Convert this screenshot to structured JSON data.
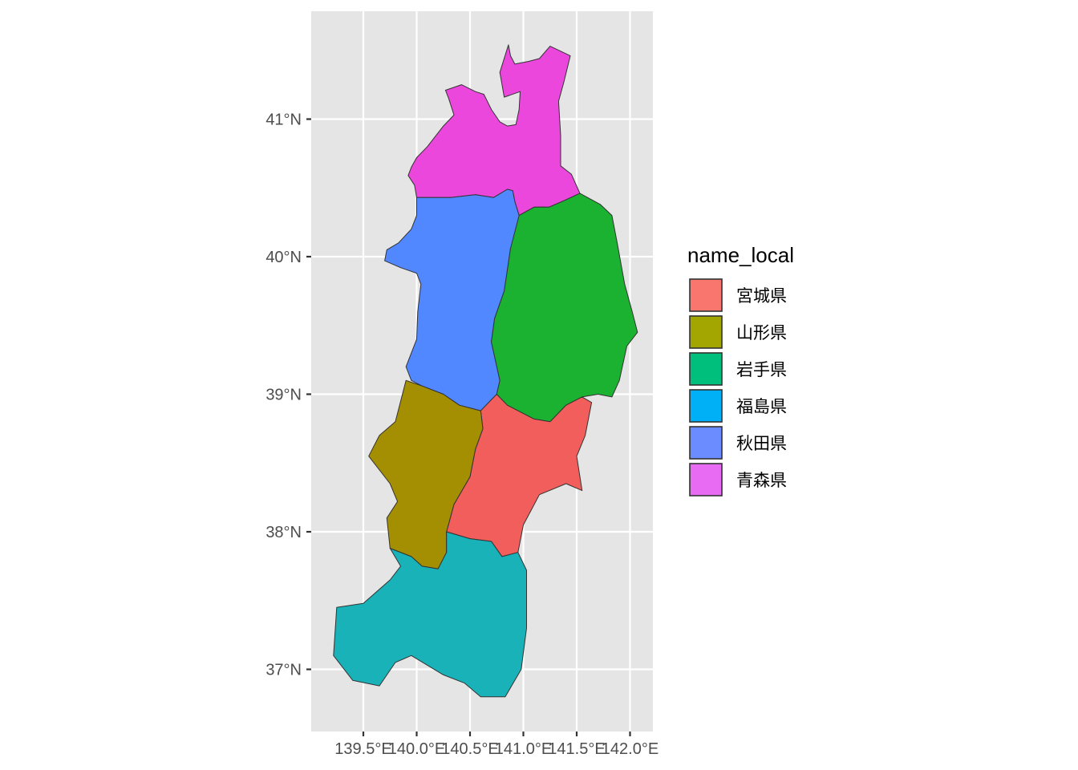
{
  "chart_data": {
    "type": "map",
    "x_axis": {
      "ticks": [
        {
          "value": 139.5,
          "label": "139.5°E"
        },
        {
          "value": 140.0,
          "label": "140.0°E"
        },
        {
          "value": 140.5,
          "label": "140.5°E"
        },
        {
          "value": 141.0,
          "label": "141.0°E"
        },
        {
          "value": 141.5,
          "label": "141.5°E"
        },
        {
          "value": 142.0,
          "label": "142.0°E"
        }
      ]
    },
    "y_axis": {
      "ticks": [
        {
          "value": 41,
          "label": "41°N"
        },
        {
          "value": 40,
          "label": "40°N"
        },
        {
          "value": 39,
          "label": "39°N"
        },
        {
          "value": 38,
          "label": "38°N"
        },
        {
          "value": 37,
          "label": "37°N"
        }
      ]
    },
    "panel_background": "#e5e5e5",
    "grid": true,
    "legend": {
      "title": "name_local",
      "position": "right",
      "entries": [
        {
          "label": "宮城県",
          "color": "#F8766D"
        },
        {
          "label": "山形県",
          "color": "#A3A500"
        },
        {
          "label": "岩手県",
          "color": "#00BF7D"
        },
        {
          "label": "福島県",
          "color": "#00B0F6"
        },
        {
          "label": "秋田県",
          "color": "#6A8CFF"
        },
        {
          "label": "青森県",
          "color": "#E76BF3"
        }
      ]
    },
    "regions": [
      {
        "name": "青森県",
        "color": "#EC47DD",
        "outline": [
          [
            140.86,
            41.54
          ],
          [
            140.88,
            41.46
          ],
          [
            140.92,
            41.4
          ],
          [
            141.05,
            41.42
          ],
          [
            141.15,
            41.44
          ],
          [
            141.25,
            41.53
          ],
          [
            141.44,
            41.46
          ],
          [
            141.38,
            41.27
          ],
          [
            141.33,
            41.13
          ],
          [
            141.35,
            40.88
          ],
          [
            141.35,
            40.66
          ],
          [
            141.45,
            40.6
          ],
          [
            141.53,
            40.46
          ],
          [
            141.36,
            40.4
          ],
          [
            141.24,
            40.36
          ],
          [
            141.1,
            40.36
          ],
          [
            140.96,
            40.3
          ],
          [
            140.92,
            40.4
          ],
          [
            140.9,
            40.48
          ],
          [
            140.85,
            40.49
          ],
          [
            140.72,
            40.43
          ],
          [
            140.55,
            40.45
          ],
          [
            140.32,
            40.43
          ],
          [
            140.15,
            40.43
          ],
          [
            140.0,
            40.43
          ],
          [
            139.98,
            40.52
          ],
          [
            139.92,
            40.59
          ],
          [
            139.95,
            40.65
          ],
          [
            140.0,
            40.72
          ],
          [
            140.1,
            40.8
          ],
          [
            140.25,
            40.95
          ],
          [
            140.35,
            41.03
          ],
          [
            140.3,
            41.15
          ],
          [
            140.27,
            41.21
          ],
          [
            140.42,
            41.25
          ],
          [
            140.55,
            41.2
          ],
          [
            140.63,
            41.18
          ],
          [
            140.7,
            41.07
          ],
          [
            140.78,
            40.98
          ],
          [
            140.85,
            40.95
          ],
          [
            140.93,
            40.96
          ],
          [
            140.96,
            41.07
          ],
          [
            140.97,
            41.2
          ],
          [
            140.82,
            41.16
          ],
          [
            140.78,
            41.34
          ]
        ]
      },
      {
        "name": "秋田県",
        "color": "#5187FF",
        "outline": [
          [
            140.0,
            40.43
          ],
          [
            140.15,
            40.43
          ],
          [
            140.32,
            40.43
          ],
          [
            140.55,
            40.45
          ],
          [
            140.72,
            40.43
          ],
          [
            140.85,
            40.49
          ],
          [
            140.9,
            40.48
          ],
          [
            140.92,
            40.4
          ],
          [
            140.96,
            40.3
          ],
          [
            140.96,
            40.12
          ],
          [
            140.88,
            40.06
          ],
          [
            140.85,
            39.9
          ],
          [
            140.82,
            39.75
          ],
          [
            140.73,
            39.55
          ],
          [
            140.7,
            39.38
          ],
          [
            140.78,
            39.1
          ],
          [
            140.75,
            39.0
          ],
          [
            140.6,
            38.88
          ],
          [
            140.4,
            38.92
          ],
          [
            140.25,
            39.0
          ],
          [
            140.05,
            39.06
          ],
          [
            139.95,
            39.1
          ],
          [
            139.9,
            39.2
          ],
          [
            140.0,
            39.4
          ],
          [
            140.01,
            39.6
          ],
          [
            140.04,
            39.8
          ],
          [
            140.0,
            39.88
          ],
          [
            139.85,
            39.92
          ],
          [
            139.7,
            39.97
          ],
          [
            139.72,
            40.05
          ],
          [
            139.83,
            40.1
          ],
          [
            139.95,
            40.2
          ],
          [
            140.0,
            40.3
          ]
        ]
      },
      {
        "name": "岩手県",
        "color": "#1AB230",
        "outline": [
          [
            140.96,
            40.3
          ],
          [
            141.1,
            40.36
          ],
          [
            141.24,
            40.36
          ],
          [
            141.36,
            40.4
          ],
          [
            141.53,
            40.46
          ],
          [
            141.72,
            40.38
          ],
          [
            141.83,
            40.3
          ],
          [
            141.88,
            40.1
          ],
          [
            141.95,
            39.8
          ],
          [
            142.02,
            39.6
          ],
          [
            142.07,
            39.45
          ],
          [
            141.97,
            39.35
          ],
          [
            141.9,
            39.1
          ],
          [
            141.83,
            38.98
          ],
          [
            141.7,
            39.0
          ],
          [
            141.55,
            38.98
          ],
          [
            141.4,
            38.92
          ],
          [
            141.25,
            38.8
          ],
          [
            141.1,
            38.82
          ],
          [
            140.85,
            38.92
          ],
          [
            140.75,
            39.0
          ],
          [
            140.78,
            39.1
          ],
          [
            140.7,
            39.38
          ],
          [
            140.73,
            39.55
          ],
          [
            140.82,
            39.75
          ],
          [
            140.85,
            39.9
          ],
          [
            140.88,
            40.06
          ]
        ]
      },
      {
        "name": "宮城県",
        "color": "#F25E5B",
        "outline": [
          [
            140.6,
            38.88
          ],
          [
            140.75,
            39.0
          ],
          [
            140.85,
            38.92
          ],
          [
            141.1,
            38.82
          ],
          [
            141.25,
            38.8
          ],
          [
            141.4,
            38.92
          ],
          [
            141.55,
            38.98
          ],
          [
            141.64,
            38.94
          ],
          [
            141.58,
            38.7
          ],
          [
            141.5,
            38.55
          ],
          [
            141.55,
            38.3
          ],
          [
            141.4,
            38.35
          ],
          [
            141.15,
            38.27
          ],
          [
            141.0,
            38.05
          ],
          [
            140.95,
            37.85
          ],
          [
            140.8,
            37.82
          ],
          [
            140.7,
            37.93
          ],
          [
            140.5,
            37.95
          ],
          [
            140.28,
            38.0
          ],
          [
            140.35,
            38.2
          ],
          [
            140.5,
            38.4
          ],
          [
            140.55,
            38.6
          ],
          [
            140.62,
            38.75
          ]
        ]
      },
      {
        "name": "山形県",
        "color": "#A48E02",
        "outline": [
          [
            139.9,
            39.1
          ],
          [
            140.05,
            39.06
          ],
          [
            140.25,
            39.0
          ],
          [
            140.4,
            38.92
          ],
          [
            140.6,
            38.88
          ],
          [
            140.62,
            38.75
          ],
          [
            140.55,
            38.6
          ],
          [
            140.5,
            38.4
          ],
          [
            140.35,
            38.2
          ],
          [
            140.28,
            38.0
          ],
          [
            140.28,
            37.85
          ],
          [
            140.2,
            37.73
          ],
          [
            140.05,
            37.75
          ],
          [
            139.95,
            37.82
          ],
          [
            139.75,
            37.88
          ],
          [
            139.72,
            38.1
          ],
          [
            139.82,
            38.22
          ],
          [
            139.75,
            38.35
          ],
          [
            139.55,
            38.55
          ],
          [
            139.65,
            38.7
          ],
          [
            139.8,
            38.8
          ]
        ]
      },
      {
        "name": "福島県",
        "color": "#18B2B8",
        "outline": [
          [
            140.28,
            38.0
          ],
          [
            140.5,
            37.95
          ],
          [
            140.7,
            37.93
          ],
          [
            140.8,
            37.82
          ],
          [
            140.95,
            37.85
          ],
          [
            141.03,
            37.72
          ],
          [
            141.03,
            37.3
          ],
          [
            140.98,
            37.0
          ],
          [
            140.83,
            36.8
          ],
          [
            140.6,
            36.8
          ],
          [
            140.45,
            36.9
          ],
          [
            140.25,
            36.96
          ],
          [
            139.95,
            37.1
          ],
          [
            139.8,
            37.05
          ],
          [
            139.65,
            36.88
          ],
          [
            139.4,
            36.92
          ],
          [
            139.22,
            37.1
          ],
          [
            139.25,
            37.45
          ],
          [
            139.5,
            37.48
          ],
          [
            139.75,
            37.65
          ],
          [
            139.85,
            37.75
          ],
          [
            139.75,
            37.88
          ],
          [
            139.95,
            37.82
          ],
          [
            140.05,
            37.75
          ],
          [
            140.2,
            37.73
          ],
          [
            140.28,
            37.85
          ]
        ]
      }
    ]
  }
}
